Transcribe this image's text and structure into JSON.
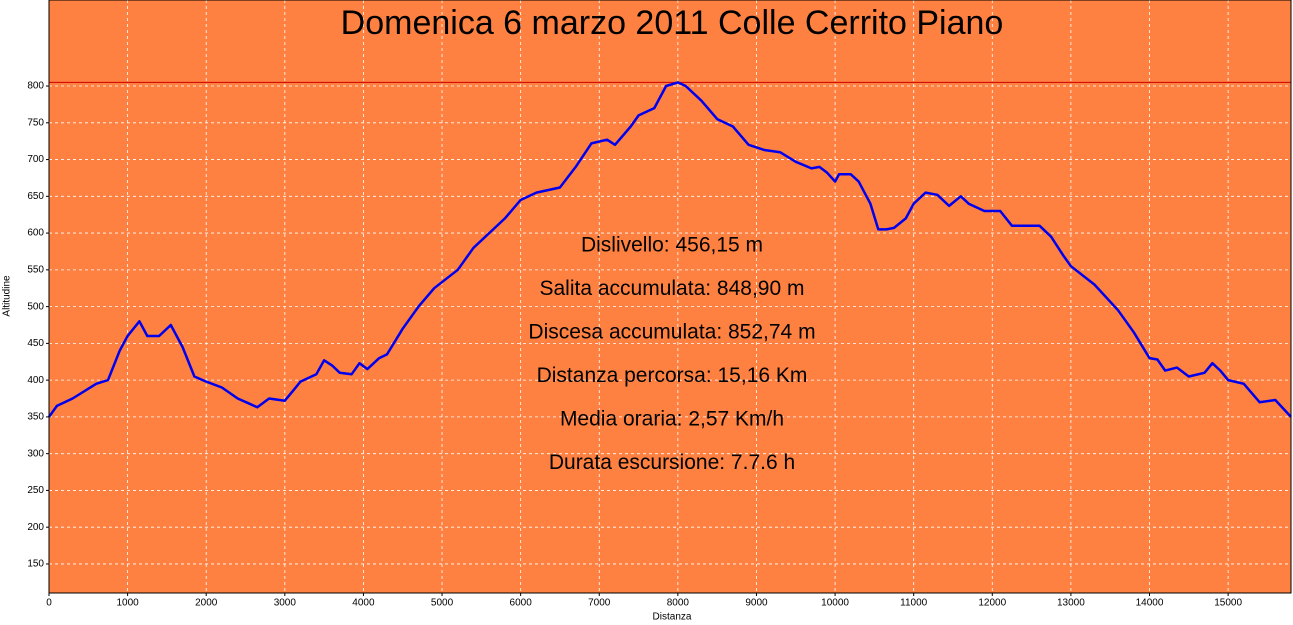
{
  "chart_data": {
    "type": "line",
    "title": "Domenica 6 marzo 2011 Colle Cerrito Piano",
    "x_label": "Distanza",
    "y_label": "Altitudine",
    "annotations": [
      "Dislivello: 456,15 m",
      "Salita accumulata: 848,90 m",
      "Discesa accumulata: 852,74 m",
      "Distanza percorsa: 15,16 Km",
      "Media oraria: 2,57 Km/h",
      "Durata escursione: 7.7.6 h"
    ],
    "background": "#fe8141",
    "grid": true,
    "reference_line": 805,
    "reference_color": "#d00000",
    "xlim": [
      0,
      15800
    ],
    "ylim": [
      110.5,
      917
    ],
    "xticks": [
      0,
      1000,
      2000,
      3000,
      4000,
      5000,
      6000,
      7000,
      8000,
      9000,
      10000,
      11000,
      12000,
      13000,
      14000,
      15000
    ],
    "yticks": [
      150,
      200,
      250,
      300,
      350,
      400,
      450,
      500,
      550,
      600,
      650,
      700,
      750,
      800
    ],
    "series": [
      {
        "color": "#0000ee",
        "x": [
          0,
          100,
          300,
          600,
          750,
          900,
          1000,
          1150,
          1250,
          1400,
          1550,
          1700,
          1850,
          2000,
          2200,
          2400,
          2550,
          2650,
          2800,
          3000,
          3100,
          3200,
          3400,
          3500,
          3600,
          3700,
          3850,
          3950,
          4050,
          4200,
          4300,
          4500,
          4700,
          4900,
          5200,
          5400,
          5600,
          5800,
          6000,
          6200,
          6500,
          6700,
          6900,
          7100,
          7200,
          7400,
          7500,
          7700,
          7850,
          8000,
          8100,
          8300,
          8500,
          8700,
          8900,
          9100,
          9300,
          9500,
          9700,
          9800,
          9900,
          10000,
          10050,
          10200,
          10300,
          10450,
          10550,
          10650,
          10750,
          10900,
          11000,
          11150,
          11300,
          11450,
          11600,
          11700,
          11900,
          12100,
          12250,
          12450,
          12600,
          12750,
          12900,
          13000,
          13300,
          13600,
          13800,
          14000,
          14100,
          14200,
          14350,
          14500,
          14700,
          14800,
          14900,
          15000,
          15200,
          15400,
          15600,
          15800
        ],
        "values": [
          350,
          365,
          375,
          395,
          400,
          440,
          460,
          480,
          460,
          460,
          475,
          445,
          405,
          398,
          390,
          375,
          368,
          363,
          375,
          372,
          385,
          398,
          408,
          427,
          420,
          410,
          408,
          423,
          415,
          430,
          435,
          470,
          500,
          525,
          550,
          580,
          600,
          620,
          645,
          655,
          662,
          690,
          722,
          727,
          720,
          745,
          760,
          770,
          800,
          805,
          800,
          780,
          755,
          745,
          720,
          713,
          710,
          697,
          688,
          690,
          682,
          670,
          680,
          680,
          670,
          640,
          605,
          605,
          607,
          620,
          640,
          655,
          652,
          637,
          650,
          640,
          630,
          630,
          610,
          610,
          610,
          595,
          570,
          555,
          530,
          495,
          465,
          430,
          428,
          413,
          417,
          405,
          410,
          423,
          413,
          400,
          395,
          370,
          373,
          350
        ]
      }
    ]
  }
}
